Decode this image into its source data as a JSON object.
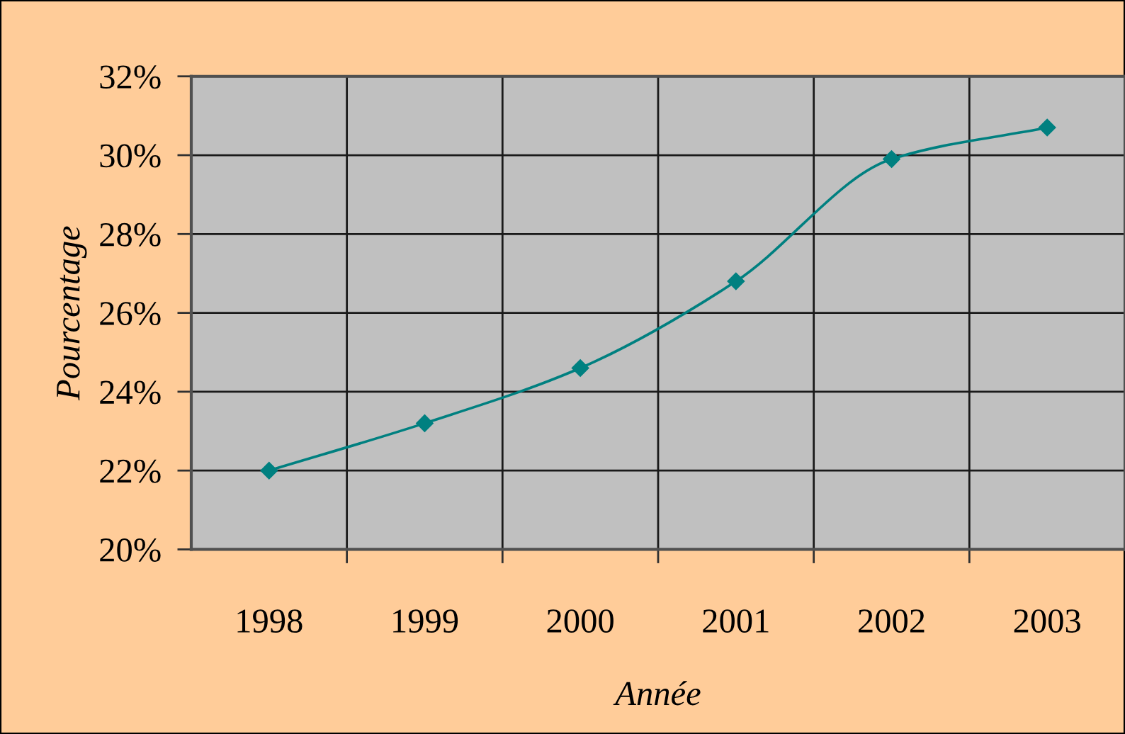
{
  "chart_data": {
    "type": "line",
    "xlabel": "Année",
    "ylabel": "Pourcentage",
    "categories": [
      "1998",
      "1999",
      "2000",
      "2001",
      "2002",
      "2003"
    ],
    "series": [
      {
        "color": "#008080",
        "values": [
          22.0,
          23.2,
          24.6,
          26.8,
          29.9,
          30.7
        ]
      }
    ],
    "ylim": [
      20,
      32
    ],
    "yticks": [
      {
        "value": 20,
        "label": "20%"
      },
      {
        "value": 22,
        "label": "22%"
      },
      {
        "value": 24,
        "label": "24%"
      },
      {
        "value": 26,
        "label": "26%"
      },
      {
        "value": 28,
        "label": "28%"
      },
      {
        "value": 30,
        "label": "30%"
      },
      {
        "value": 32,
        "label": "32%"
      }
    ],
    "grid": true,
    "marker": "diamond",
    "line_style": "solid"
  }
}
